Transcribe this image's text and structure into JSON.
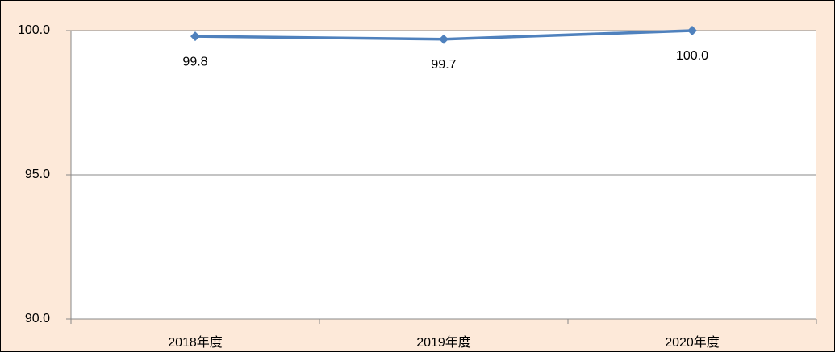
{
  "chart_data": {
    "type": "line",
    "categories": [
      "2018年度",
      "2019年度",
      "2020年度"
    ],
    "series": [
      {
        "color": "#4f81bd",
        "values": [
          99.8,
          99.7,
          100.0
        ],
        "value_labels": [
          "99.8",
          "99.7",
          "100.0"
        ]
      }
    ],
    "ylim": [
      90,
      100
    ],
    "yticks": [
      {
        "value": 90,
        "label": "90.0"
      },
      {
        "value": 95,
        "label": "95.0"
      },
      {
        "value": 100,
        "label": "100.0"
      }
    ],
    "grid": true
  }
}
